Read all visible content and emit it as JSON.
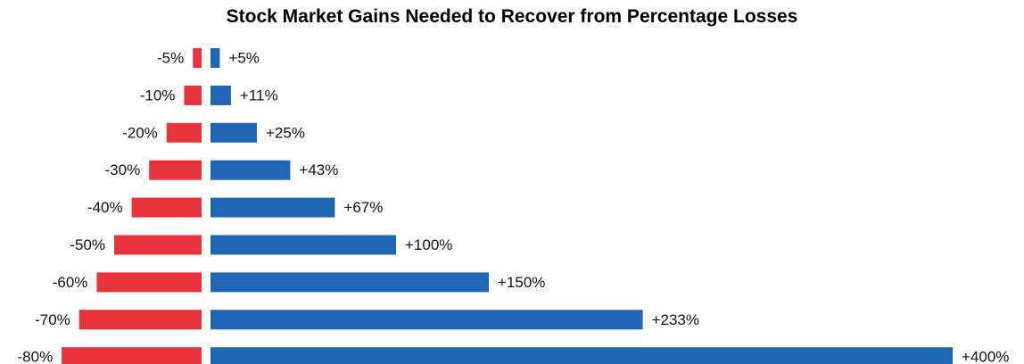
{
  "chart_data": {
    "type": "bar",
    "orientation": "horizontal-diverging",
    "title": "Stock Market Gains Needed to Recover from Percentage Losses",
    "xlabel": "",
    "ylabel": "",
    "grid": false,
    "legend": "none",
    "series": [
      {
        "role": "loss",
        "color": "#e8333a",
        "values": [
          -5,
          -10,
          -20,
          -30,
          -40,
          -50,
          -60,
          -70,
          -80
        ],
        "labels": [
          "-5%",
          "-10%",
          "-20%",
          "-30%",
          "-40%",
          "-50%",
          "-60%",
          "-70%",
          "-80%"
        ]
      },
      {
        "role": "gain",
        "color": "#1f67b5",
        "values": [
          5,
          11,
          25,
          43,
          67,
          100,
          150,
          233,
          400
        ],
        "labels": [
          "+5%",
          "+11%",
          "+25%",
          "+43%",
          "+67%",
          "+100%",
          "+150%",
          "+233%",
          "+400%"
        ]
      }
    ]
  }
}
